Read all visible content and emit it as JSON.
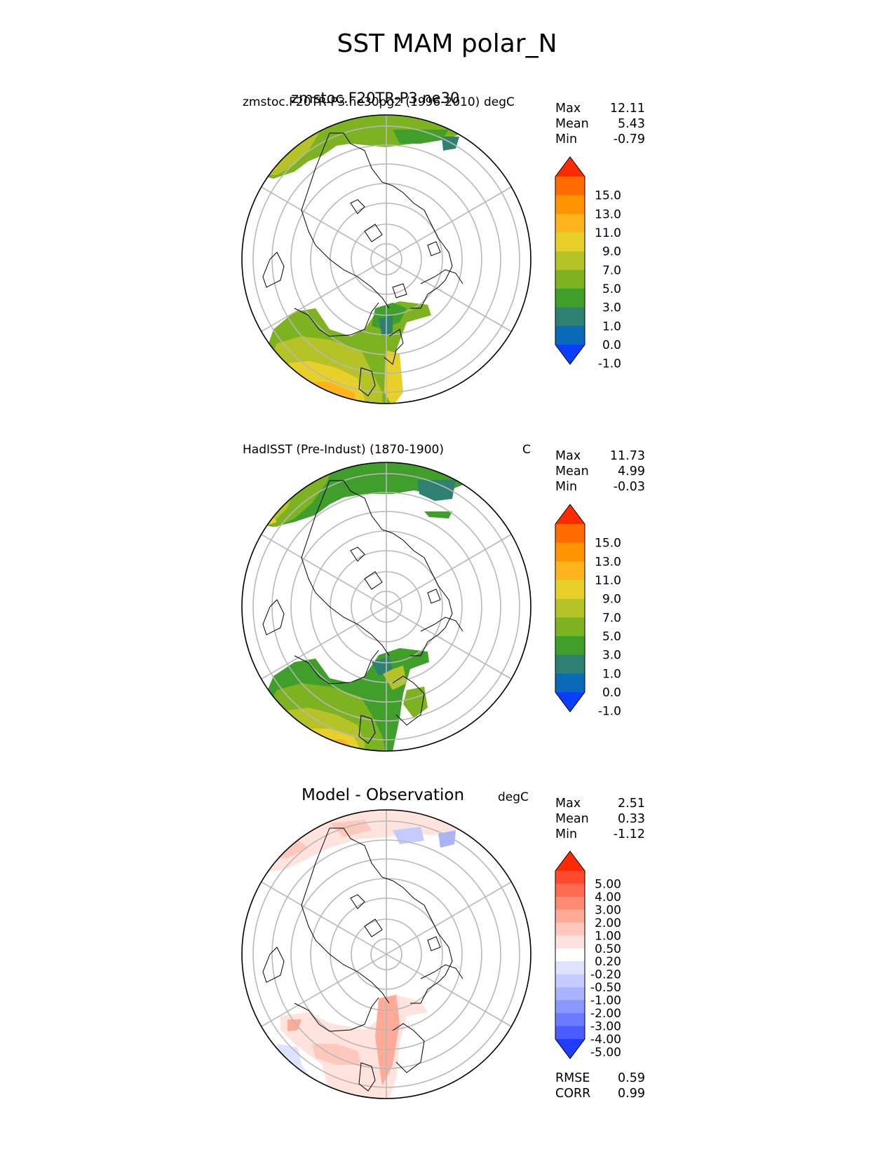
{
  "figure_title": "SST MAM polar_N",
  "panels": [
    {
      "title_left": "zmstoc.F20TR-P3.ne30pg2 (1996-2010)",
      "title_overlap": "zmstoc.F20TR-P3.ne30",
      "units": "degC",
      "stats": [
        {
          "label": "Max",
          "value": "12.11"
        },
        {
          "label": "Mean",
          "value": "5.43"
        },
        {
          "label": "Min",
          "value": "-0.79"
        }
      ]
    },
    {
      "title_left": "HadISST (Pre-Indust) (1870-1900)",
      "units": "C",
      "stats": [
        {
          "label": "Max",
          "value": "11.73"
        },
        {
          "label": "Mean",
          "value": "4.99"
        },
        {
          "label": "Min",
          "value": "-0.03"
        }
      ]
    },
    {
      "title_center": "Model - Observation",
      "units": "degC",
      "stats": [
        {
          "label": "Max",
          "value": "2.51"
        },
        {
          "label": "Mean",
          "value": "0.33"
        },
        {
          "label": "Min",
          "value": "-1.12"
        }
      ],
      "metrics": [
        {
          "label": "RMSE",
          "value": "0.59"
        },
        {
          "label": "CORR",
          "value": "0.99"
        }
      ]
    }
  ],
  "colorbar_main": {
    "labels": [
      "15.0",
      "13.0",
      "11.0",
      "9.0",
      "7.0",
      "5.0",
      "3.0",
      "1.0",
      "0.0",
      "-1.0"
    ],
    "colors": [
      "#ff2a00",
      "#ff6b00",
      "#ff9400",
      "#ffb41e",
      "#e8d02a",
      "#b5c327",
      "#7db321",
      "#3f9f2a",
      "#2e8170",
      "#0a6ab8",
      "#0b3fff"
    ]
  },
  "colorbar_diff": {
    "labels": [
      "5.00",
      "4.00",
      "3.00",
      "2.00",
      "1.00",
      "0.50",
      "0.20",
      "-0.20",
      "-0.50",
      "-1.00",
      "-2.00",
      "-3.00",
      "-4.00",
      "-5.00"
    ],
    "colors": [
      "#ff2a00",
      "#ff4a30",
      "#ff6a50",
      "#ff8a72",
      "#ffab98",
      "#ffc8bd",
      "#ffe3dc",
      "#ffffff",
      "#dce2ff",
      "#c4ccff",
      "#a8b4ff",
      "#8a97ff",
      "#6a7bff",
      "#4a5cff",
      "#1f3cff"
    ]
  }
}
